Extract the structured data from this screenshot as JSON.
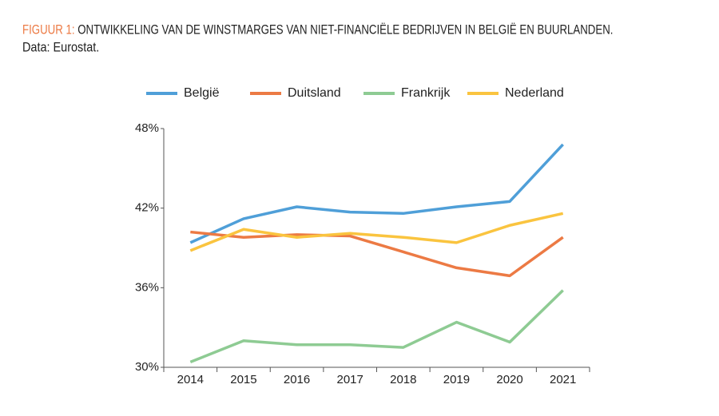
{
  "chart_data": {
    "type": "line",
    "title_label": "FIGUUR 1:",
    "title": "ONTWIKKELING VAN DE WINSTMARGES VAN NIET-FINANCIËLE BEDRIJVEN IN BELGIË EN BUURLANDEN.",
    "subtitle": "Data: Eurostat.",
    "categories": [
      "2014",
      "2015",
      "2016",
      "2017",
      "2018",
      "2019",
      "2020",
      "2021"
    ],
    "series": [
      {
        "name": "België",
        "color": "#4f9fd8",
        "values": [
          39.4,
          41.2,
          42.1,
          41.7,
          41.6,
          42.1,
          42.5,
          46.8
        ]
      },
      {
        "name": "Duitsland",
        "color": "#ec7a44",
        "values": [
          40.2,
          39.8,
          40.0,
          39.9,
          38.7,
          37.5,
          36.9,
          39.8
        ]
      },
      {
        "name": "Frankrijk",
        "color": "#8ecb93",
        "values": [
          30.4,
          32.0,
          31.7,
          31.7,
          31.5,
          33.4,
          31.9,
          35.8
        ]
      },
      {
        "name": "Nederland",
        "color": "#fac43f",
        "values": [
          38.8,
          40.4,
          39.8,
          40.1,
          39.8,
          39.4,
          40.7,
          41.6
        ]
      }
    ],
    "ylim": [
      30,
      48
    ],
    "yticks": [
      {
        "value": 30,
        "label": "30%"
      },
      {
        "value": 36,
        "label": "36%"
      },
      {
        "value": 42,
        "label": "42%"
      },
      {
        "value": 48,
        "label": "48%"
      }
    ],
    "grid": false,
    "legend": "top"
  }
}
